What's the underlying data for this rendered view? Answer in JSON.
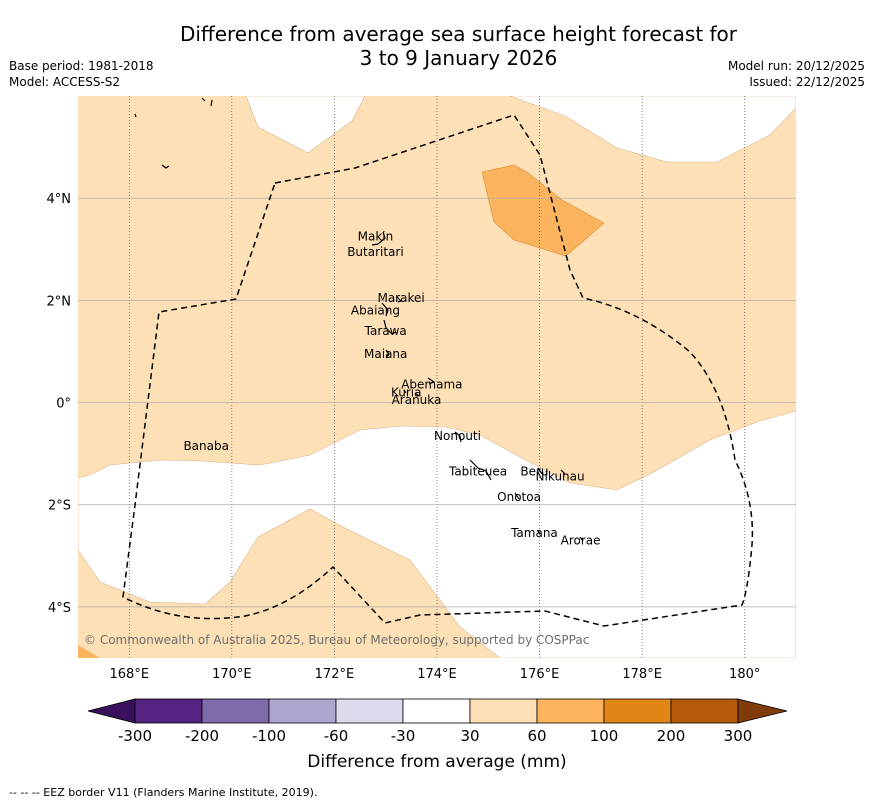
{
  "title": {
    "line1": "Difference from average sea surface height forecast for",
    "line2": "3 to 9 January 2026"
  },
  "meta_left": {
    "base_period": "Base period: 1981-2018",
    "model": "Model: ACCESS-S2"
  },
  "meta_right": {
    "model_run": "Model run: 20/12/2025",
    "issued": "Issued: 22/12/2025"
  },
  "map": {
    "lon_ticks": [
      "168°E",
      "170°E",
      "172°E",
      "174°E",
      "176°E",
      "178°E",
      "180°"
    ],
    "lat_ticks": [
      "4°N",
      "2°N",
      "0°",
      "2°S",
      "4°S"
    ],
    "lon_range": [
      167,
      181
    ],
    "lat_range": [
      -5,
      6
    ],
    "places": [
      {
        "name": "Makin",
        "lon": 172.8,
        "lat": 3.25
      },
      {
        "name": "Butaritari",
        "lon": 172.8,
        "lat": 2.95
      },
      {
        "name": "Marakei",
        "lon": 173.3,
        "lat": 2.05
      },
      {
        "name": "Abaiang",
        "lon": 172.8,
        "lat": 1.8
      },
      {
        "name": "Tarawa",
        "lon": 173.0,
        "lat": 1.4
      },
      {
        "name": "Maiana",
        "lon": 173.0,
        "lat": 0.95
      },
      {
        "name": "Abemama",
        "lon": 173.9,
        "lat": 0.35
      },
      {
        "name": "Kuria",
        "lon": 173.4,
        "lat": 0.2
      },
      {
        "name": "Aranuka",
        "lon": 173.6,
        "lat": 0.05
      },
      {
        "name": "Nonouti",
        "lon": 174.4,
        "lat": -0.65
      },
      {
        "name": "Banaba",
        "lon": 169.5,
        "lat": -0.85
      },
      {
        "name": "Tabiteuea",
        "lon": 174.8,
        "lat": -1.35
      },
      {
        "name": "Beru",
        "lon": 175.9,
        "lat": -1.35
      },
      {
        "name": "Nikunau",
        "lon": 176.4,
        "lat": -1.45
      },
      {
        "name": "Onotoa",
        "lon": 175.6,
        "lat": -1.85
      },
      {
        "name": "Tamana",
        "lon": 175.9,
        "lat": -2.55
      },
      {
        "name": "Arorae",
        "lon": 176.8,
        "lat": -2.7
      }
    ],
    "copyright": "© Commonwealth of Australia 2025, Bureau of Meteorology, supported by COSPPac"
  },
  "legend": {
    "labels": [
      "-300",
      "-200",
      "-100",
      "-60",
      "-30",
      "30",
      "60",
      "100",
      "200",
      "300"
    ],
    "colors": [
      "#3a0f5c",
      "#54237f",
      "#7d6ca9",
      "#ada7d0",
      "#dcdbee",
      "#ffffff",
      "#fde0b6",
      "#fbb45d",
      "#e38514",
      "#b55a06",
      "#7f3b08"
    ],
    "title": "Difference from average (mm)"
  },
  "footer": "--  --  -- EEZ border V11 (Flanders Marine Institute, 2019)."
}
